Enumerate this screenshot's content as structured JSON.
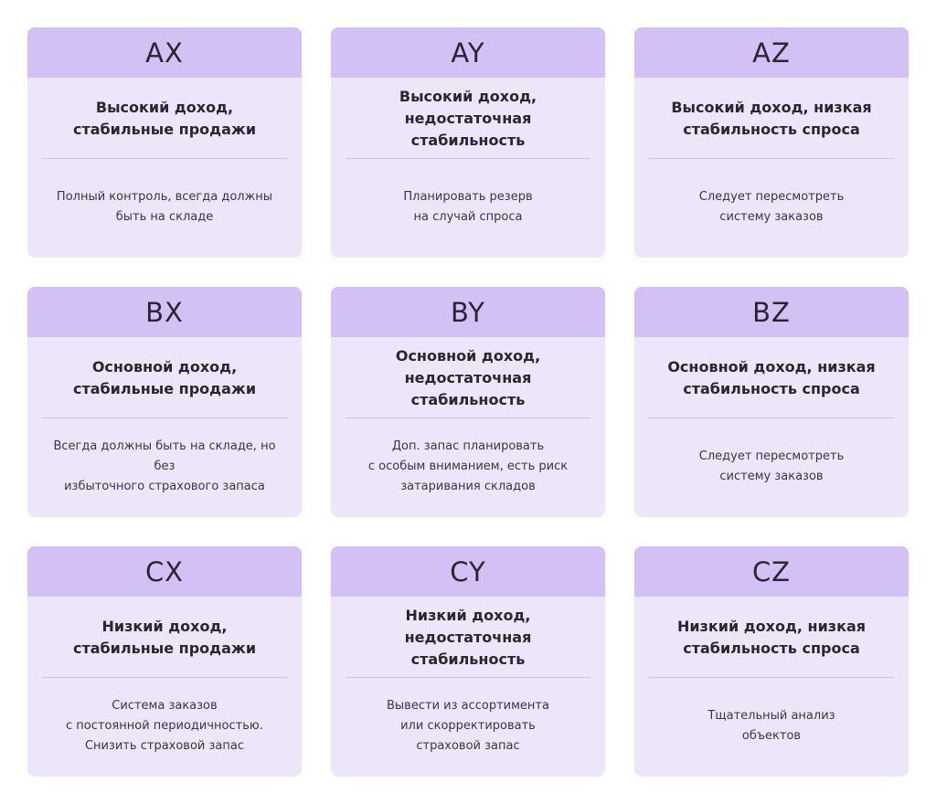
{
  "cards": [
    {
      "code": "AX",
      "title": "Высокий доход,\nстабильные продажи",
      "description": "Полный контроль, всегда должны\nбыть на складе"
    },
    {
      "code": "AY",
      "title": "Высокий доход,\nнедостаточная стабильность",
      "description": "Планировать резерв\nна случай спроса"
    },
    {
      "code": "AZ",
      "title": "Высокий доход, низкая\nстабильность спроса",
      "description": "Следует пересмотреть\nсистему заказов"
    },
    {
      "code": "BX",
      "title": "Основной доход,\nстабильные продажи",
      "description": "Всегда должны быть на складе, но без\nизбыточного страхового запаса"
    },
    {
      "code": "BY",
      "title": "Основной доход,\nнедостаточная стабильность",
      "description": "Доп. запас планировать\nс особым вниманием, есть риск\nзатаривания складов"
    },
    {
      "code": "BZ",
      "title": "Основной доход, низкая\nстабильность спроса",
      "description": "Следует пересмотреть\nсистему заказов"
    },
    {
      "code": "CX",
      "title": "Низкий доход,\nстабильные продажи",
      "description": "Система заказов\nс постоянной периодичностью.\nСнизить страховой запас"
    },
    {
      "code": "CY",
      "title": "Низкий доход,\nнедостаточная стабильность",
      "description": "Вывести из ассортимента\nили скорректировать\nстраховой запас"
    },
    {
      "code": "CZ",
      "title": "Низкий доход, низкая\nстабильность спроса",
      "description": "Тщательный анализ\nобъектов"
    }
  ]
}
